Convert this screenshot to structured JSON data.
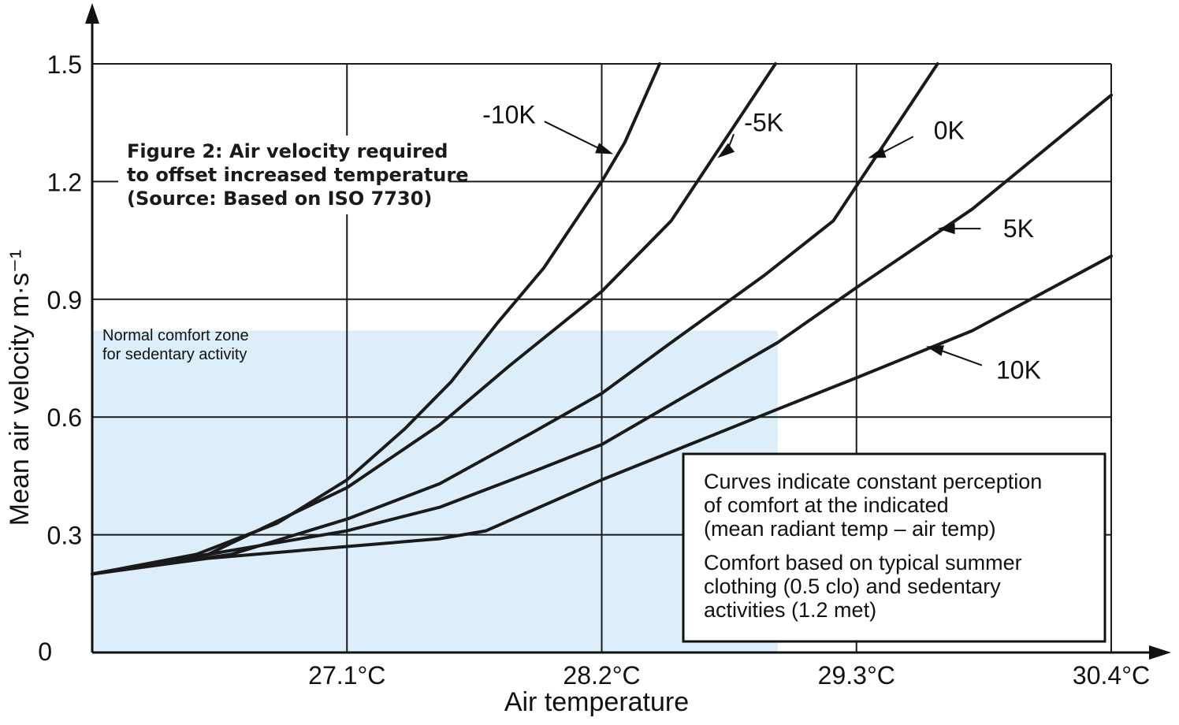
{
  "figure": {
    "title_lines": [
      "Figure 2: Air velocity required",
      "to offset increased temperature",
      "(Source: Based on ISO 7730)"
    ]
  },
  "chart_data": {
    "type": "line",
    "xlabel": "Air temperature",
    "ylabel": "Mean air velocity m·s⁻¹",
    "xlim": [
      26.0,
      30.4
    ],
    "ylim": [
      0,
      1.5
    ],
    "x_ticks": [
      {
        "value": 27.1,
        "label": "27.1°C"
      },
      {
        "value": 28.2,
        "label": "28.2°C"
      },
      {
        "value": 29.3,
        "label": "29.3°C"
      },
      {
        "value": 30.4,
        "label": "30.4°C"
      }
    ],
    "y_ticks": [
      {
        "value": 0,
        "label": "0"
      },
      {
        "value": 0.3,
        "label": "0.3"
      },
      {
        "value": 0.6,
        "label": "0.6"
      },
      {
        "value": 0.9,
        "label": "0.9"
      },
      {
        "value": 1.2,
        "label": "1.2"
      },
      {
        "value": 1.5,
        "label": "1.5"
      }
    ],
    "grid": true,
    "comfort_zone": {
      "x": [
        26.0,
        28.96
      ],
      "y": [
        0,
        0.82
      ],
      "color": "#dbeef9",
      "label_lines": [
        "Normal comfort zone",
        "for sedentary activity"
      ]
    },
    "series": [
      {
        "name": "-10K",
        "label_x": 27.8,
        "label_y": 1.37,
        "arrow_to_x": 28.25,
        "arrow_to_y": 1.27,
        "points": [
          [
            26.0,
            0.2
          ],
          [
            26.45,
            0.25
          ],
          [
            26.8,
            0.33
          ],
          [
            27.1,
            0.44
          ],
          [
            27.35,
            0.57
          ],
          [
            27.55,
            0.69
          ],
          [
            27.75,
            0.84
          ],
          [
            27.95,
            0.98
          ],
          [
            28.2,
            1.2
          ],
          [
            28.3,
            1.3
          ],
          [
            28.45,
            1.5
          ]
        ]
      },
      {
        "name": "-5K",
        "label_x": 28.9,
        "label_y": 1.35,
        "arrow_to_x": 28.7,
        "arrow_to_y": 1.26,
        "points": [
          [
            26.0,
            0.2
          ],
          [
            26.5,
            0.25
          ],
          [
            27.1,
            0.42
          ],
          [
            27.5,
            0.58
          ],
          [
            27.8,
            0.73
          ],
          [
            28.2,
            0.92
          ],
          [
            28.5,
            1.1
          ],
          [
            28.95,
            1.5
          ]
        ]
      },
      {
        "name": "0K",
        "label_x": 29.7,
        "label_y": 1.33,
        "arrow_to_x": 29.35,
        "arrow_to_y": 1.26,
        "points": [
          [
            26.0,
            0.2
          ],
          [
            26.6,
            0.25
          ],
          [
            27.1,
            0.34
          ],
          [
            27.5,
            0.43
          ],
          [
            27.9,
            0.56
          ],
          [
            28.2,
            0.66
          ],
          [
            28.5,
            0.79
          ],
          [
            28.9,
            0.96
          ],
          [
            29.2,
            1.1
          ],
          [
            29.65,
            1.5
          ]
        ]
      },
      {
        "name": "5K",
        "label_x": 30.0,
        "label_y": 1.08,
        "arrow_to_x": 29.65,
        "arrow_to_y": 1.08,
        "points": [
          [
            26.0,
            0.2
          ],
          [
            26.5,
            0.25
          ],
          [
            27.1,
            0.31
          ],
          [
            27.5,
            0.37
          ],
          [
            27.9,
            0.46
          ],
          [
            28.2,
            0.53
          ],
          [
            28.96,
            0.79
          ],
          [
            29.3,
            0.93
          ],
          [
            29.8,
            1.13
          ],
          [
            30.4,
            1.42
          ]
        ]
      },
      {
        "name": "10K",
        "label_x": 30.0,
        "label_y": 0.72,
        "arrow_to_x": 29.6,
        "arrow_to_y": 0.78,
        "points": [
          [
            26.0,
            0.2
          ],
          [
            26.5,
            0.24
          ],
          [
            27.1,
            0.27
          ],
          [
            27.5,
            0.29
          ],
          [
            27.7,
            0.31
          ],
          [
            28.2,
            0.44
          ],
          [
            28.96,
            0.62
          ],
          [
            29.3,
            0.7
          ],
          [
            29.8,
            0.82
          ],
          [
            30.4,
            1.01
          ]
        ]
      }
    ],
    "note": {
      "lines": [
        "Curves indicate constant perception",
        "of comfort at the indicated",
        "(mean radiant temp – air temp)",
        "Comfort based on typical summer",
        "clothing (0.5 clo) and sedentary",
        "activities (1.2 met)"
      ]
    }
  }
}
